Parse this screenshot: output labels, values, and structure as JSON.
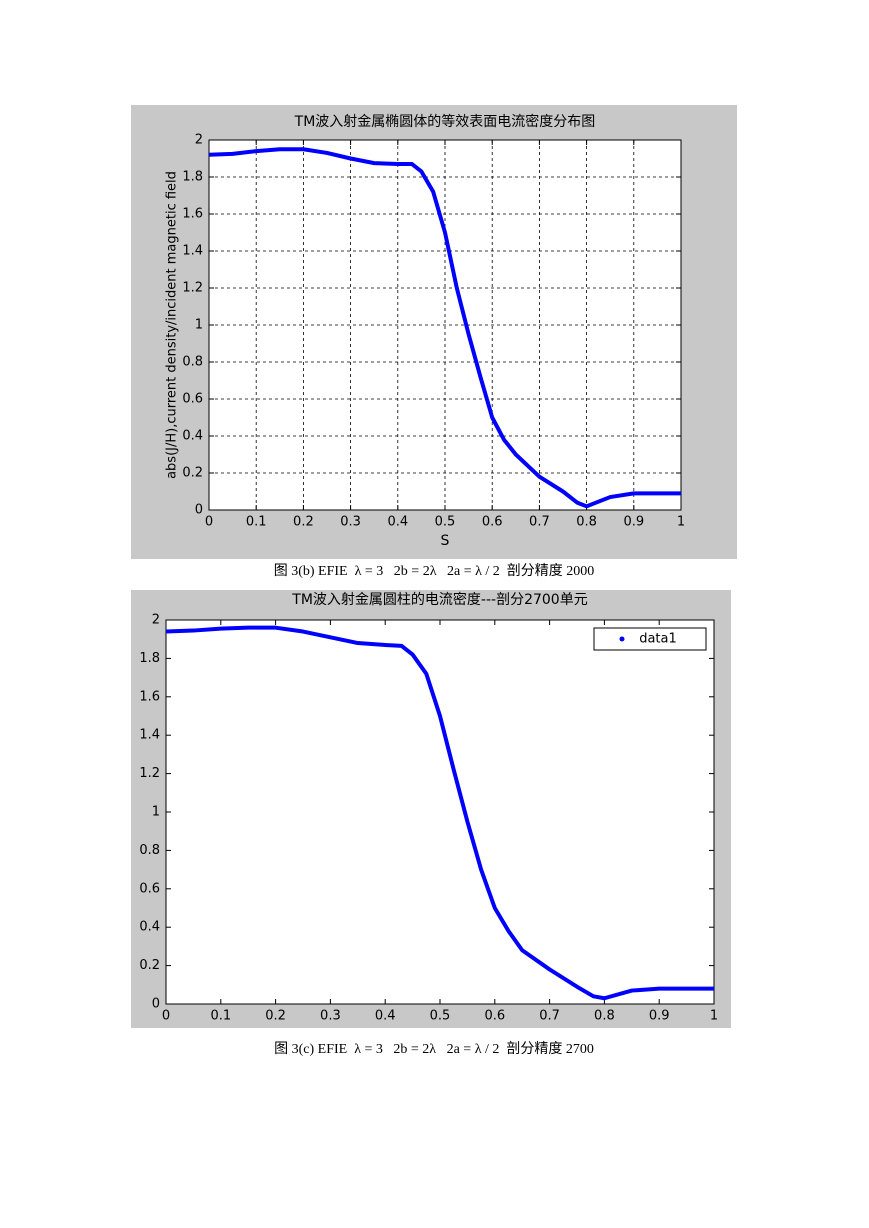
{
  "chart_data": [
    {
      "type": "line",
      "title": "TM波入射金属椭圆体的等效表面电流密度分布图",
      "xlabel": "S",
      "ylabel": "abs(J/H),current density/incident magnetic field",
      "caption": "图 3(b) EFIE  λ = 3   2b = 2λ   2a = λ / 2  剖分精度 2000",
      "x": [
        0,
        0.05,
        0.1,
        0.15,
        0.2,
        0.25,
        0.3,
        0.35,
        0.4,
        0.43,
        0.45,
        0.475,
        0.5,
        0.525,
        0.55,
        0.575,
        0.6,
        0.625,
        0.65,
        0.7,
        0.75,
        0.78,
        0.8,
        0.85,
        0.9,
        0.95,
        1
      ],
      "values": [
        1.92,
        1.925,
        1.94,
        1.95,
        1.95,
        1.93,
        1.9,
        1.875,
        1.87,
        1.87,
        1.83,
        1.72,
        1.5,
        1.2,
        0.95,
        0.72,
        0.5,
        0.38,
        0.3,
        0.18,
        0.1,
        0.04,
        0.02,
        0.07,
        0.09,
        0.09,
        0.09
      ],
      "color": "#0000ff",
      "xlim": [
        0,
        1
      ],
      "xticks": [
        0,
        0.1,
        0.2,
        0.3,
        0.4,
        0.5,
        0.6,
        0.7,
        0.8,
        0.9,
        1
      ],
      "ylim": [
        0,
        2
      ],
      "yticks": [
        0,
        0.2,
        0.4,
        0.6,
        0.8,
        1,
        1.2,
        1.4,
        1.6,
        1.8,
        2
      ],
      "grid": true
    },
    {
      "type": "line",
      "title": "TM波入射金属圆柱的电流密度---剖分2700单元",
      "caption": "图 3(c) EFIE  λ = 3   2b = 2λ   2a = λ / 2  剖分精度 2700",
      "x": [
        0,
        0.05,
        0.1,
        0.15,
        0.2,
        0.25,
        0.3,
        0.35,
        0.4,
        0.43,
        0.45,
        0.475,
        0.5,
        0.525,
        0.55,
        0.575,
        0.6,
        0.625,
        0.65,
        0.7,
        0.75,
        0.78,
        0.8,
        0.85,
        0.9,
        1
      ],
      "series": [
        {
          "name": "data1",
          "color": "#0000ff",
          "values": [
            1.94,
            1.945,
            1.955,
            1.96,
            1.96,
            1.94,
            1.91,
            1.88,
            1.87,
            1.865,
            1.82,
            1.72,
            1.5,
            1.22,
            0.95,
            0.7,
            0.5,
            0.38,
            0.28,
            0.18,
            0.09,
            0.04,
            0.03,
            0.07,
            0.08,
            0.08
          ]
        }
      ],
      "xlim": [
        0,
        1
      ],
      "xticks": [
        0,
        0.1,
        0.2,
        0.3,
        0.4,
        0.5,
        0.6,
        0.7,
        0.8,
        0.9,
        1
      ],
      "ylim": [
        0,
        2
      ],
      "yticks": [
        0,
        0.2,
        0.4,
        0.6,
        0.8,
        1,
        1.2,
        1.4,
        1.6,
        1.8,
        2
      ],
      "grid": false,
      "legend": "upper right"
    }
  ]
}
